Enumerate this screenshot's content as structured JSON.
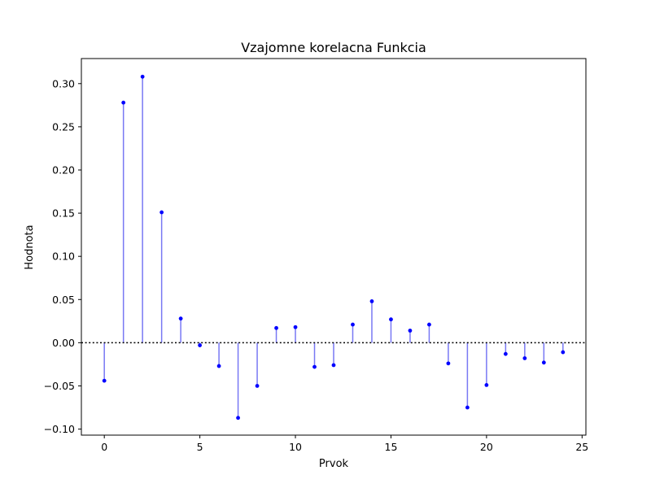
{
  "chart_data": {
    "type": "stem",
    "title": "Vzajomne korelacna Funkcia",
    "xlabel": "Prvok",
    "ylabel": "Hodnota",
    "xlim": [
      -1.2,
      25.2
    ],
    "ylim": [
      -0.107,
      0.329
    ],
    "x_ticks": [
      0,
      5,
      10,
      15,
      20,
      25
    ],
    "x_tick_labels": [
      "0",
      "5",
      "10",
      "15",
      "20",
      "25"
    ],
    "y_ticks": [
      -0.1,
      -0.05,
      0.0,
      0.05,
      0.1,
      0.15,
      0.2,
      0.25,
      0.3
    ],
    "y_tick_labels": [
      "−0.10",
      "−0.05",
      "0.00",
      "0.05",
      "0.10",
      "0.15",
      "0.20",
      "0.25",
      "0.30"
    ],
    "x": [
      0,
      1,
      2,
      3,
      4,
      5,
      6,
      7,
      8,
      9,
      10,
      11,
      12,
      13,
      14,
      15,
      16,
      17,
      18,
      19,
      20,
      21,
      22,
      23,
      24
    ],
    "values": [
      -0.044,
      0.278,
      0.308,
      0.151,
      0.028,
      -0.003,
      -0.027,
      -0.087,
      -0.05,
      0.017,
      0.018,
      -0.028,
      -0.026,
      0.021,
      0.048,
      0.027,
      0.014,
      0.021,
      -0.024,
      -0.075,
      -0.049,
      -0.013,
      -0.018,
      -0.023,
      -0.011
    ],
    "baseline": 0,
    "baseline_style": "dotted",
    "grid": false,
    "colors": {
      "marker": "#0000ff",
      "stem": "#7878f4",
      "baseline": "#000000"
    }
  }
}
